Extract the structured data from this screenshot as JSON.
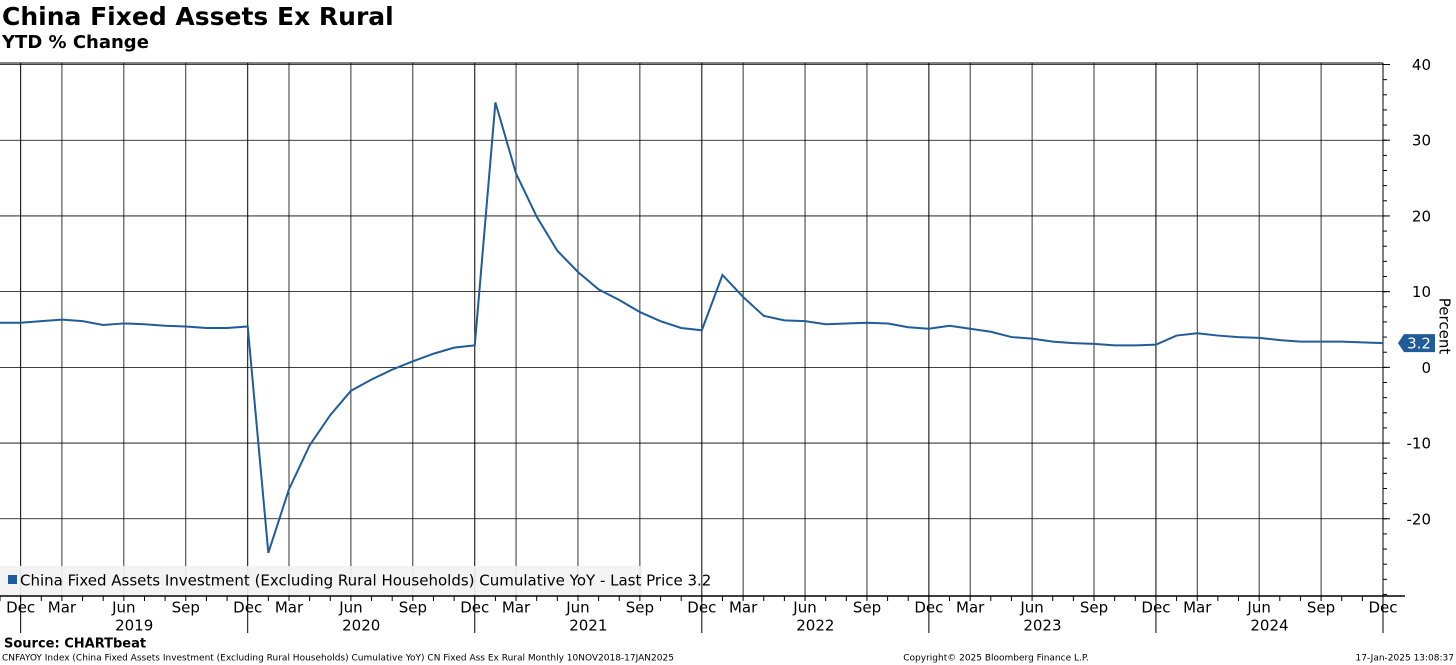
{
  "chart_data": {
    "type": "line",
    "title": "China Fixed Assets Ex Rural",
    "subtitle": "YTD % Change",
    "y_label": "Percent",
    "source": "Source: CHARTbeat",
    "footer_left": "CNFAYOY Index (China Fixed Assets Investment (Excluding Rural Households) Cumulative YoY) CN Fixed Ass Ex Rural  Monthly 10NOV2018-17JAN2025",
    "footer_center": "Copyright© 2025 Bloomberg Finance L.P.",
    "footer_right": "17-Jan-2025 13:08:37",
    "categories": [
      null,
      "Dec",
      null,
      "Mar",
      null,
      null,
      "Jun",
      null,
      null,
      "Sep",
      null,
      null,
      "Dec",
      null,
      "Mar",
      null,
      null,
      "Jun",
      null,
      null,
      "Sep",
      null,
      null,
      "Dec",
      null,
      "Mar",
      null,
      null,
      "Jun",
      null,
      null,
      "Sep",
      null,
      null,
      "Dec",
      null,
      "Mar",
      null,
      null,
      "Jun",
      null,
      null,
      "Sep",
      null,
      null,
      "Dec",
      null,
      "Mar",
      null,
      null,
      "Jun",
      null,
      null,
      "Sep",
      null,
      null,
      "Dec",
      null,
      "Mar",
      null,
      null,
      "Jun",
      null,
      null,
      "Sep",
      null,
      null,
      "Dec"
    ],
    "years": [
      "2019",
      "2020",
      "2021",
      "2022",
      "2023",
      "2024"
    ],
    "series": [
      {
        "name": "China Fixed Assets Investment (Excluding Rural Households) Cumulative YoY - Last Price 3.2",
        "color": "#1f5c99",
        "values": [
          5.9,
          5.9,
          6.1,
          6.3,
          6.1,
          5.6,
          5.8,
          5.7,
          5.5,
          5.4,
          5.2,
          5.2,
          5.4,
          -24.5,
          -16.1,
          -10.3,
          -6.3,
          -3.1,
          -1.6,
          -0.3,
          0.8,
          1.8,
          2.6,
          2.9,
          35.0,
          25.6,
          19.9,
          15.4,
          12.6,
          10.3,
          8.9,
          7.3,
          6.1,
          5.2,
          4.9,
          12.2,
          9.3,
          6.8,
          6.2,
          6.1,
          5.7,
          5.8,
          5.9,
          5.8,
          5.3,
          5.1,
          5.5,
          5.1,
          4.7,
          4.0,
          3.8,
          3.4,
          3.2,
          3.1,
          2.9,
          2.9,
          3.0,
          4.2,
          4.5,
          4.2,
          4.0,
          3.9,
          3.6,
          3.4,
          3.4,
          3.4,
          3.3,
          3.2
        ]
      }
    ],
    "ylim": [
      -30.2,
      40.2
    ],
    "yticks": [
      -20,
      -10,
      0,
      10,
      20,
      30,
      40
    ],
    "grid": true
  }
}
